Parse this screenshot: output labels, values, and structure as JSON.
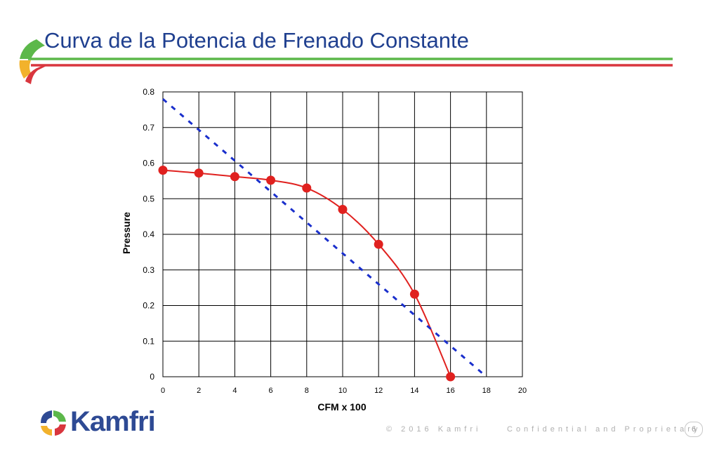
{
  "slide": {
    "title": "Curva de la Potencia de Frenado Constante",
    "logo_text": "Kamfri",
    "footer_copyright": "© 2016 Kamfri",
    "footer_confidential": "Confidential and Proprietary",
    "page_number": "6",
    "colors": {
      "title": "#1f3f8f",
      "header_green": "#5cb84a",
      "header_red": "#d9363e",
      "header_yellow": "#f2b22c",
      "logo_blue": "#2e4a94"
    }
  },
  "chart_data": {
    "type": "line",
    "title": "",
    "xlabel": "CFM x 100",
    "ylabel": "Pressure",
    "xlim": [
      0,
      20
    ],
    "ylim": [
      0,
      0.8
    ],
    "x_ticks": [
      "0",
      "2",
      "4",
      "6",
      "8",
      "10",
      "12",
      "14",
      "16",
      "18",
      "20"
    ],
    "y_ticks": [
      "0",
      "0.1",
      "0.2",
      "0.3",
      "0.4",
      "0.5",
      "0.6",
      "0.7",
      "0.8"
    ],
    "grid": true,
    "legend": "none",
    "series": [
      {
        "style": "solid-markers",
        "color": "#e0211f",
        "x": [
          0,
          2,
          4,
          6,
          8,
          10,
          12,
          14,
          16
        ],
        "y": [
          0.58,
          0.572,
          0.562,
          0.552,
          0.53,
          0.47,
          0.372,
          0.232,
          0.0
        ]
      },
      {
        "style": "dashed",
        "color": "#1a2fcc",
        "x": [
          0,
          18
        ],
        "y": [
          0.78,
          0.0
        ]
      }
    ]
  }
}
